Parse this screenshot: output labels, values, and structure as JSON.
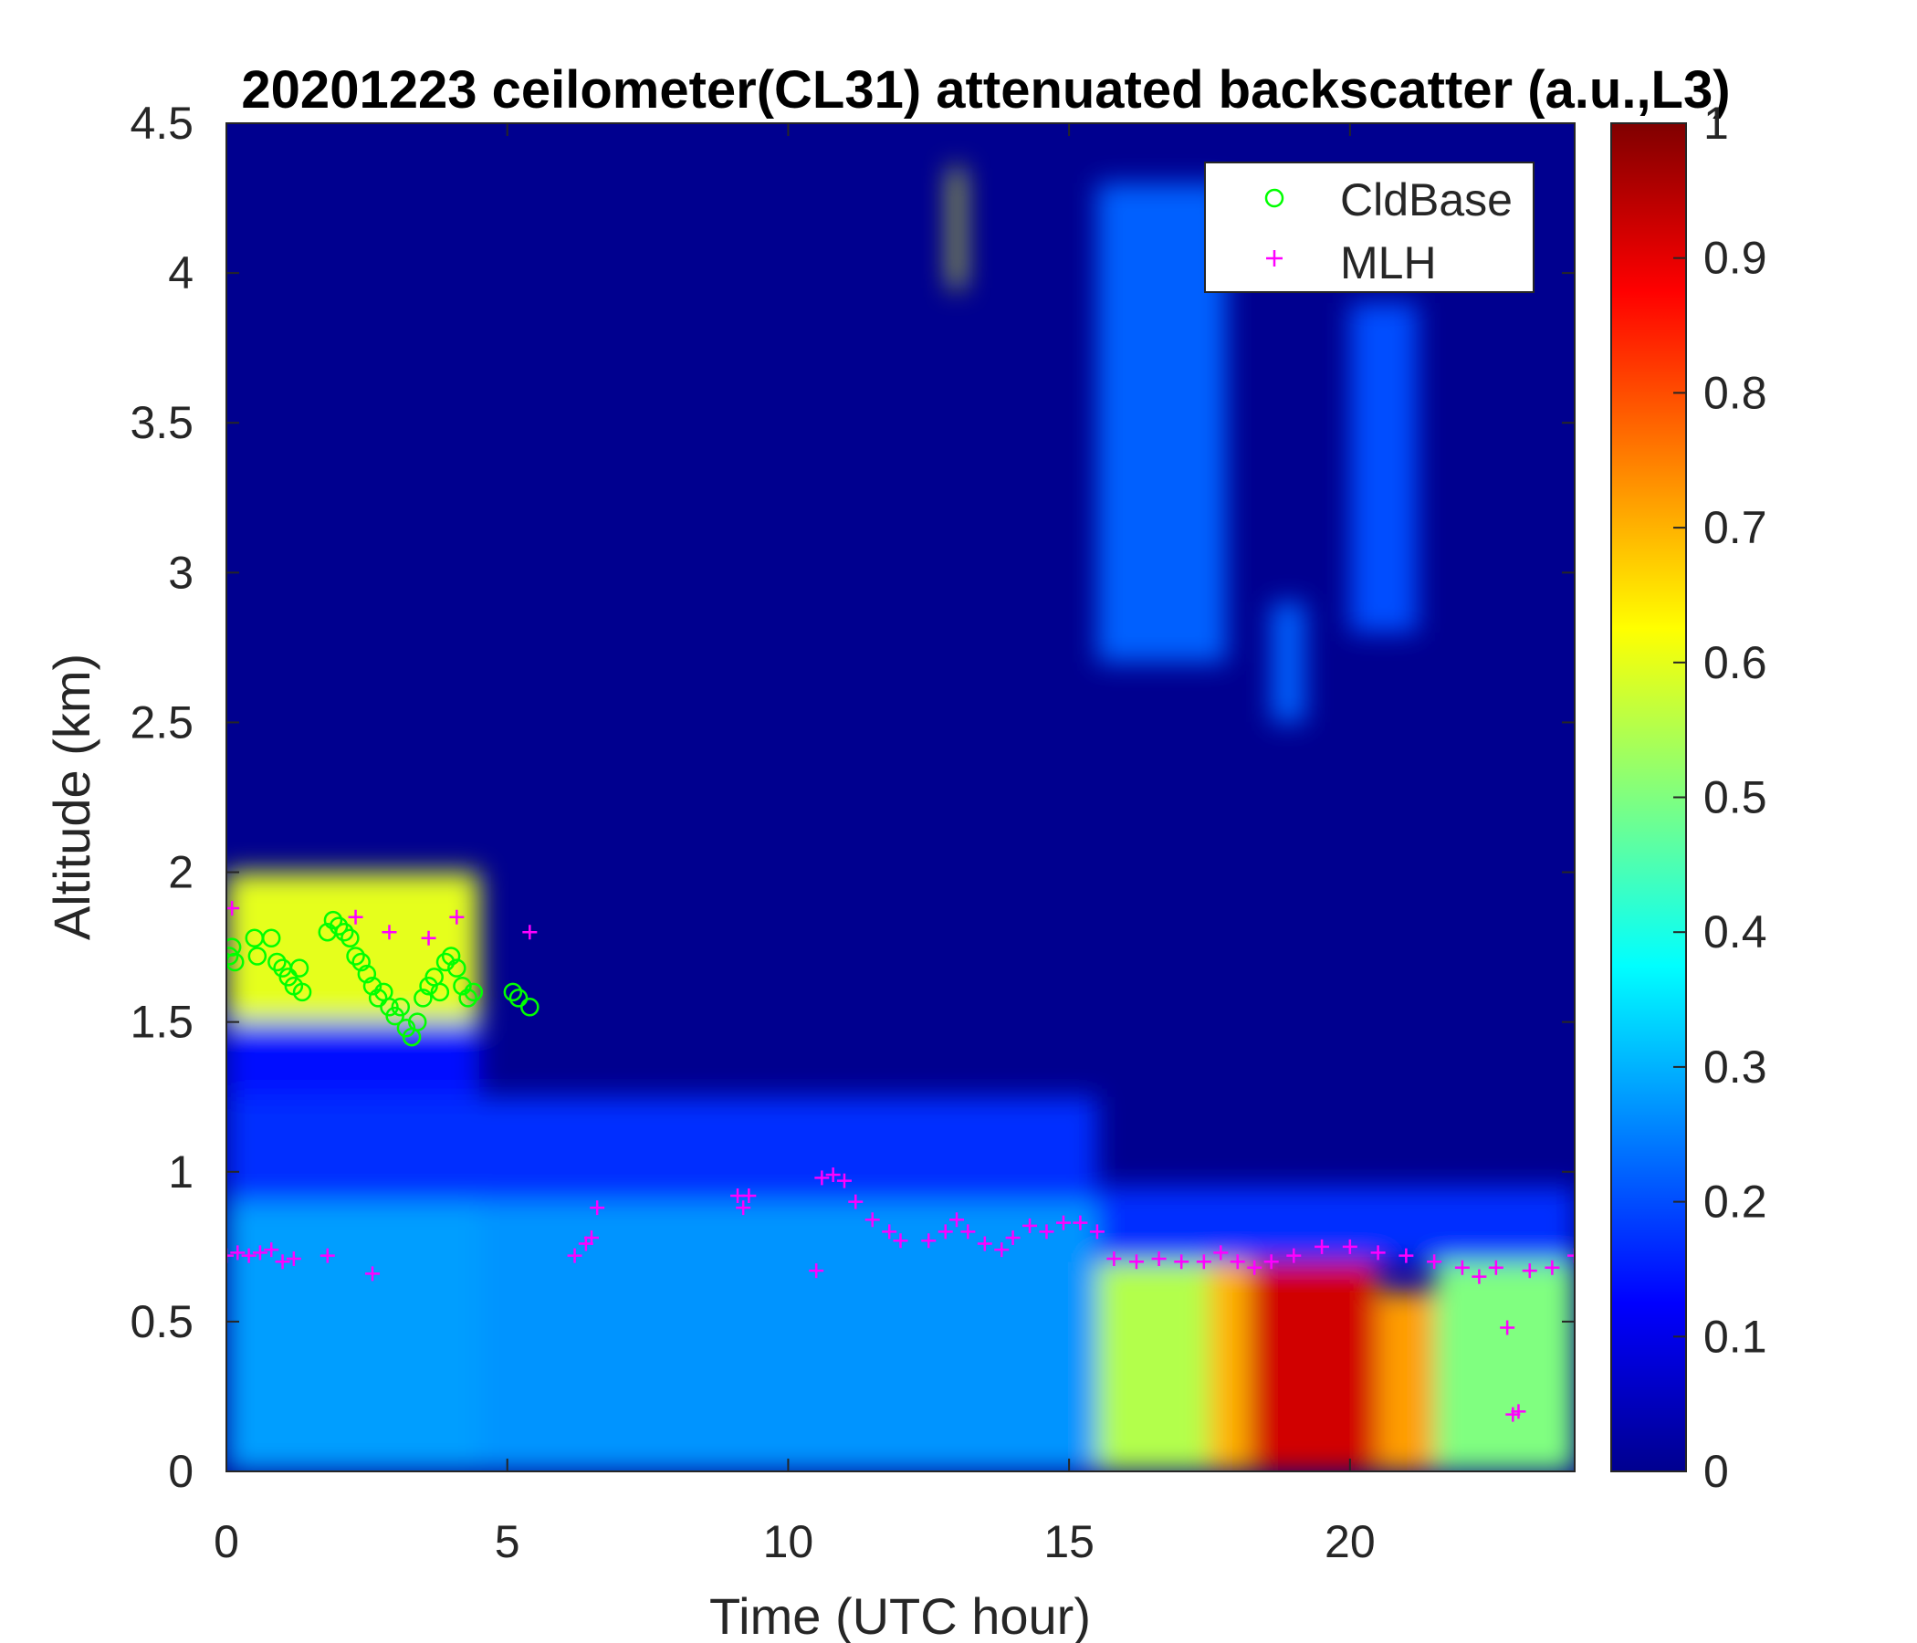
{
  "chart_data": {
    "type": "heatmap",
    "title": "20201223 ceilometer(CL31) attenuated backscatter (a.u.,L3)",
    "xlabel": "Time (UTC hour)",
    "ylabel": "Altitude (km)",
    "xlim": [
      0,
      24
    ],
    "ylim": [
      0,
      4.5
    ],
    "x_ticks": [
      0,
      5,
      10,
      15,
      20
    ],
    "x_tick_labels": [
      "0",
      "5",
      "10",
      "15",
      "20"
    ],
    "y_ticks": [
      0,
      0.5,
      1,
      1.5,
      2,
      2.5,
      3,
      3.5,
      4,
      4.5
    ],
    "y_tick_labels": [
      "0",
      "0.5",
      "1",
      "1.5",
      "2",
      "2.5",
      "3",
      "3.5",
      "4",
      "4.5"
    ],
    "colorbar": {
      "colormap": "jet",
      "range": [
        0,
        1
      ],
      "ticks": [
        0,
        0.1,
        0.2,
        0.3,
        0.4,
        0.5,
        0.6,
        0.7,
        0.8,
        0.9,
        1
      ],
      "tick_labels": [
        "0",
        "0.1",
        "0.2",
        "0.3",
        "0.4",
        "0.5",
        "0.6",
        "0.7",
        "0.8",
        "0.9",
        "1"
      ]
    },
    "legend": {
      "placement": "top-right",
      "entries": [
        {
          "label": "CldBase",
          "marker": "circle",
          "color": "#00ff00"
        },
        {
          "label": "MLH",
          "marker": "plus",
          "color": "#ff00ff"
        }
      ]
    },
    "backscatter_regions": [
      {
        "t": [
          0,
          4.5
        ],
        "z": [
          0,
          0.9
        ],
        "value": 0.28
      },
      {
        "t": [
          4.5,
          15.5
        ],
        "z": [
          0,
          0.9
        ],
        "value": 0.27
      },
      {
        "t": [
          0,
          15.5
        ],
        "z": [
          0.9,
          1.25
        ],
        "value": 0.17
      },
      {
        "t": [
          0,
          4.5
        ],
        "z": [
          1.25,
          1.6
        ],
        "value": 0.14
      },
      {
        "t": [
          15.5,
          17.5
        ],
        "z": [
          0,
          0.7
        ],
        "value": 0.55
      },
      {
        "t": [
          17.5,
          18.2
        ],
        "z": [
          0,
          0.7
        ],
        "value": 0.7
      },
      {
        "t": [
          18.2,
          20.5
        ],
        "z": [
          0,
          0.7
        ],
        "value": 0.92
      },
      {
        "t": [
          20.5,
          21.5
        ],
        "z": [
          0,
          0.6
        ],
        "value": 0.72
      },
      {
        "t": [
          21.5,
          24
        ],
        "z": [
          0,
          0.7
        ],
        "value": 0.5
      },
      {
        "t": [
          15.5,
          24
        ],
        "z": [
          0.7,
          0.95
        ],
        "value": 0.17
      },
      {
        "t": [
          0,
          4.5
        ],
        "z": [
          1.5,
          2.0
        ],
        "value": 0.6
      },
      {
        "t": [
          12.9,
          13.1
        ],
        "z": [
          3.95,
          4.35
        ],
        "value": 0.6
      },
      {
        "t": [
          15.5,
          17.8
        ],
        "z": [
          2.7,
          4.3
        ],
        "value": 0.22
      },
      {
        "t": [
          18.6,
          19.2
        ],
        "z": [
          2.5,
          2.9
        ],
        "value": 0.22
      },
      {
        "t": [
          20.0,
          21.2
        ],
        "z": [
          2.8,
          3.9
        ],
        "value": 0.2
      }
    ],
    "series": [
      {
        "name": "CldBase",
        "points": [
          [
            0.05,
            1.72
          ],
          [
            0.1,
            1.75
          ],
          [
            0.15,
            1.7
          ],
          [
            0.5,
            1.78
          ],
          [
            0.55,
            1.72
          ],
          [
            0.8,
            1.78
          ],
          [
            0.9,
            1.7
          ],
          [
            1.0,
            1.68
          ],
          [
            1.1,
            1.65
          ],
          [
            1.2,
            1.62
          ],
          [
            1.3,
            1.68
          ],
          [
            1.35,
            1.6
          ],
          [
            1.8,
            1.8
          ],
          [
            1.9,
            1.84
          ],
          [
            2.0,
            1.82
          ],
          [
            2.1,
            1.8
          ],
          [
            2.2,
            1.78
          ],
          [
            2.3,
            1.72
          ],
          [
            2.4,
            1.7
          ],
          [
            2.5,
            1.66
          ],
          [
            2.6,
            1.62
          ],
          [
            2.7,
            1.58
          ],
          [
            2.8,
            1.6
          ],
          [
            2.9,
            1.55
          ],
          [
            3.0,
            1.52
          ],
          [
            3.1,
            1.55
          ],
          [
            3.2,
            1.48
          ],
          [
            3.3,
            1.45
          ],
          [
            3.4,
            1.5
          ],
          [
            3.5,
            1.58
          ],
          [
            3.6,
            1.62
          ],
          [
            3.7,
            1.65
          ],
          [
            3.8,
            1.6
          ],
          [
            3.9,
            1.7
          ],
          [
            4.0,
            1.72
          ],
          [
            4.1,
            1.68
          ],
          [
            4.2,
            1.62
          ],
          [
            4.3,
            1.58
          ],
          [
            4.4,
            1.6
          ],
          [
            5.1,
            1.6
          ],
          [
            5.2,
            1.58
          ],
          [
            5.4,
            1.55
          ]
        ]
      },
      {
        "name": "MLH",
        "points": [
          [
            0.0,
            0.72
          ],
          [
            0.1,
            1.88
          ],
          [
            0.2,
            0.73
          ],
          [
            0.4,
            0.72
          ],
          [
            0.6,
            0.73
          ],
          [
            0.8,
            0.74
          ],
          [
            1.0,
            0.7
          ],
          [
            1.2,
            0.71
          ],
          [
            1.8,
            0.72
          ],
          [
            2.6,
            0.66
          ],
          [
            2.3,
            1.85
          ],
          [
            2.9,
            1.8
          ],
          [
            3.6,
            1.78
          ],
          [
            4.1,
            1.85
          ],
          [
            5.4,
            1.8
          ],
          [
            6.2,
            0.72
          ],
          [
            6.4,
            0.76
          ],
          [
            6.5,
            0.78
          ],
          [
            6.6,
            0.88
          ],
          [
            9.1,
            0.92
          ],
          [
            9.2,
            0.88
          ],
          [
            9.3,
            0.92
          ],
          [
            10.5,
            0.67
          ],
          [
            10.6,
            0.98
          ],
          [
            10.8,
            0.99
          ],
          [
            11.0,
            0.97
          ],
          [
            11.2,
            0.9
          ],
          [
            11.5,
            0.84
          ],
          [
            11.8,
            0.8
          ],
          [
            12.0,
            0.77
          ],
          [
            12.5,
            0.77
          ],
          [
            12.8,
            0.8
          ],
          [
            13.0,
            0.84
          ],
          [
            13.2,
            0.8
          ],
          [
            13.5,
            0.76
          ],
          [
            13.8,
            0.74
          ],
          [
            14.0,
            0.78
          ],
          [
            14.3,
            0.82
          ],
          [
            14.6,
            0.8
          ],
          [
            14.9,
            0.83
          ],
          [
            15.2,
            0.83
          ],
          [
            15.5,
            0.8
          ],
          [
            15.8,
            0.71
          ],
          [
            16.2,
            0.7
          ],
          [
            16.6,
            0.71
          ],
          [
            17.0,
            0.7
          ],
          [
            17.4,
            0.7
          ],
          [
            17.7,
            0.73
          ],
          [
            18.0,
            0.7
          ],
          [
            18.3,
            0.68
          ],
          [
            18.6,
            0.7
          ],
          [
            19.0,
            0.72
          ],
          [
            19.5,
            0.75
          ],
          [
            20.0,
            0.75
          ],
          [
            20.5,
            0.73
          ],
          [
            21.0,
            0.72
          ],
          [
            21.5,
            0.7
          ],
          [
            22.0,
            0.68
          ],
          [
            22.3,
            0.65
          ],
          [
            22.6,
            0.68
          ],
          [
            22.8,
            0.48
          ],
          [
            22.9,
            0.19
          ],
          [
            23.0,
            0.2
          ],
          [
            23.2,
            0.67
          ],
          [
            23.6,
            0.68
          ],
          [
            24.0,
            0.72
          ]
        ]
      }
    ]
  }
}
